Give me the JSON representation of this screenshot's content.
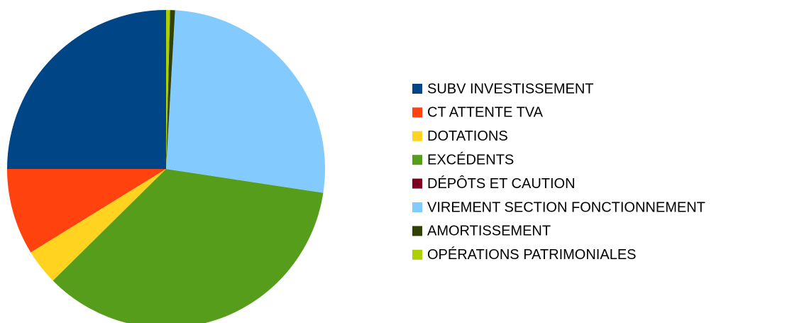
{
  "chart_data": {
    "type": "pie",
    "categories": [
      "SUBV INVESTISSEMENT",
      "CT ATTENTE TVA",
      "DOTATIONS",
      "EXCÉDENTS",
      "DÉPÔTS ET CAUTION",
      "VIREMENT SECTION FONCTIONNEMENT",
      "AMORTISSEMENT",
      "OPÉRATIONS PATRIMONIALES"
    ],
    "values": [
      25,
      8.8,
      3.6,
      35.2,
      0,
      26.5,
      0.5,
      0.4
    ],
    "colors": [
      "#004586",
      "#ff420e",
      "#ffd320",
      "#579d1c",
      "#7e0021",
      "#83caff",
      "#314004",
      "#aecf00"
    ]
  }
}
